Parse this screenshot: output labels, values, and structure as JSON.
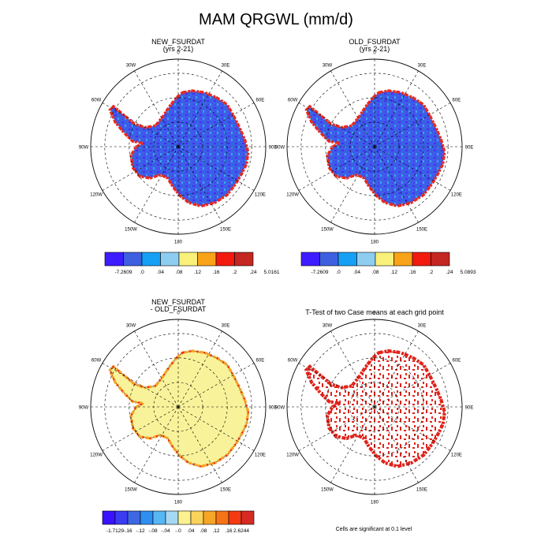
{
  "page": {
    "title": "MAM QRGWL (mm/d)"
  },
  "chart_data": [
    {
      "type": "heatmap",
      "projection": "south-polar-stereographic",
      "title_line1": "NEW_FSURDAT",
      "title_line2": "(yrs 2-21)",
      "lon_labels": [
        "0",
        "30E",
        "60E",
        "90E",
        "120E",
        "150E",
        "180",
        "150W",
        "120W",
        "90W",
        "60W",
        "30W"
      ],
      "colorbar": {
        "labels": [
          "-7.2609",
          ".0",
          ".04",
          ".08",
          ".12",
          ".16",
          ".2",
          ".24",
          "5.0161"
        ],
        "colors": [
          "#3d1cff",
          "#3d5fe0",
          "#15a0f5",
          "#8dcdef",
          "#f9f07a",
          "#f9a318",
          "#f21a0e",
          "#c42622"
        ]
      },
      "interior_class": "blue-purple (.0 to .04)",
      "coast_class": "red-orange (.16 to 5.0161)"
    },
    {
      "type": "heatmap",
      "projection": "south-polar-stereographic",
      "title_line1": "OLD_FSURDAT",
      "title_line2": "(yrs 2-21)",
      "lon_labels": [
        "0",
        "30E",
        "60E",
        "90E",
        "120E",
        "150E",
        "180",
        "150W",
        "120W",
        "90W",
        "60W",
        "30W"
      ],
      "colorbar": {
        "labels": [
          "-7.2609",
          ".0",
          ".04",
          ".08",
          ".12",
          ".16",
          ".2",
          ".24",
          "5.0893"
        ],
        "colors": [
          "#3d1cff",
          "#3d5fe0",
          "#15a0f5",
          "#8dcdef",
          "#f9f07a",
          "#f9a318",
          "#f21a0e",
          "#c42622"
        ]
      },
      "interior_class": "blue-purple (.0 to .04)",
      "coast_class": "red-orange (.16 to 5.0893)"
    },
    {
      "type": "heatmap",
      "projection": "south-polar-stereographic",
      "title_line1": "NEW_FSURDAT",
      "title_line2": "- OLD_FSURDAT",
      "lon_labels": [
        "0",
        "30E",
        "60E",
        "90E",
        "120E",
        "150E",
        "180",
        "150W",
        "120W",
        "90W",
        "60W",
        "30W"
      ],
      "colorbar": {
        "labels": [
          "-1.7129",
          "-.16",
          "-.12",
          "-.08",
          "-.04",
          "-.0",
          ".04",
          ".08",
          ".12",
          ".16",
          "2.6244"
        ],
        "colors": [
          "#3a12ff",
          "#3b3cf2",
          "#3f67e4",
          "#2f8ff0",
          "#56b7f2",
          "#a5d8f2",
          "#fdf28f",
          "#fbd25a",
          "#f7a526",
          "#f77317",
          "#f33a12",
          "#d62a22"
        ]
      },
      "interior_class": "pale yellow (-.0 to .04)"
    },
    {
      "type": "heatmap",
      "projection": "south-polar-stereographic",
      "title_line1": "T-Test of two Case means at each grid point",
      "lon_labels": [
        "0",
        "30E",
        "60E",
        "90E",
        "120E",
        "150E",
        "180",
        "150W",
        "120W",
        "90W",
        "60W",
        "30W"
      ],
      "note": "Cells are significant at 0.1 level",
      "significant_color": "#e0231b"
    }
  ]
}
